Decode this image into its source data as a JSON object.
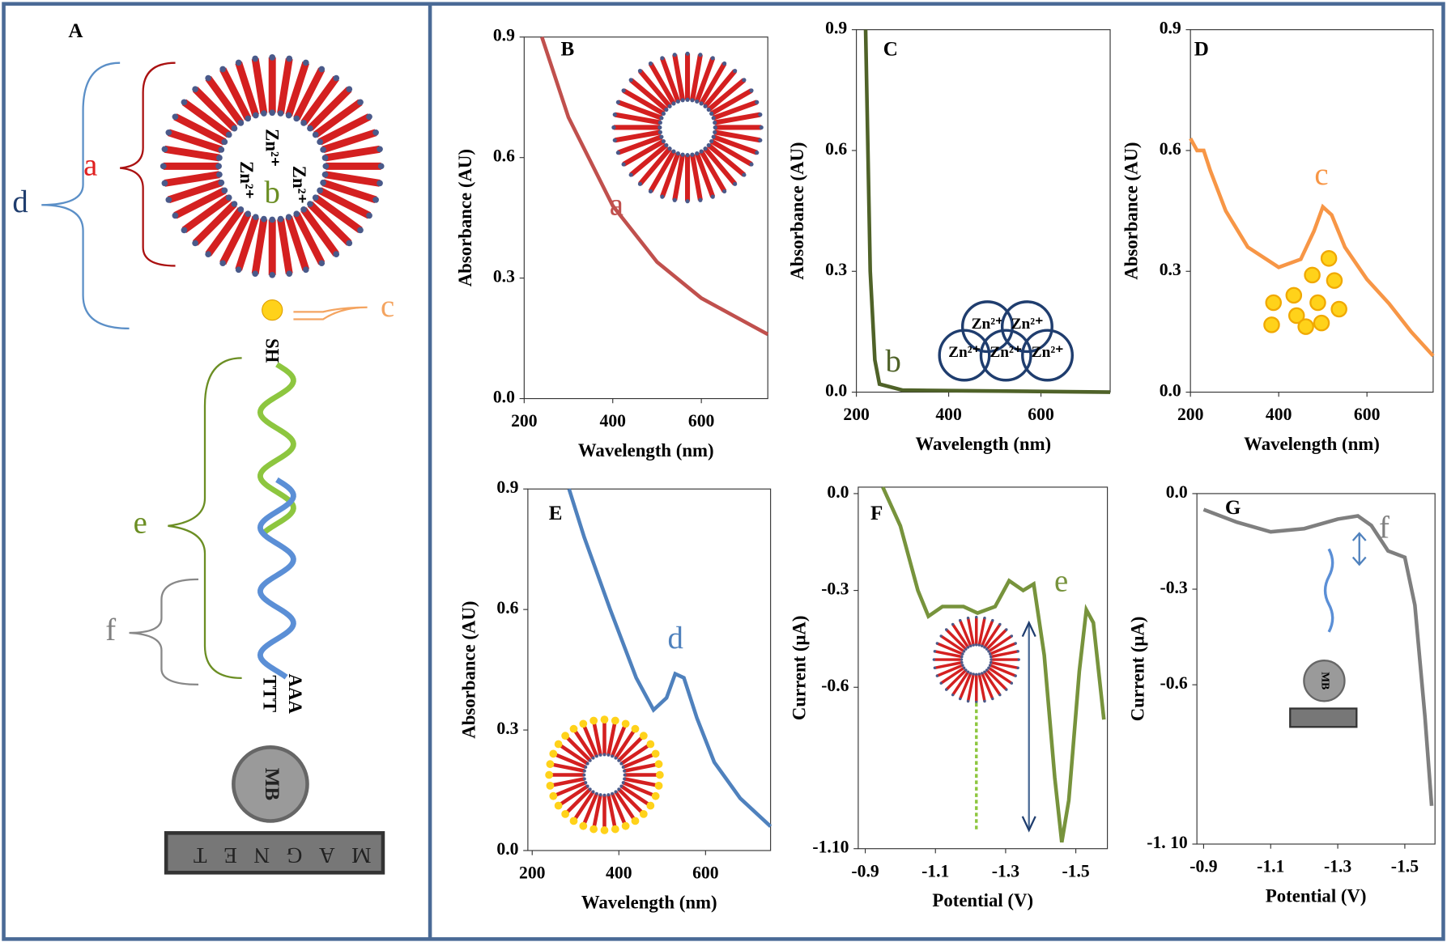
{
  "panel_a": {
    "label": "A",
    "labels": [
      "a",
      "b",
      "c",
      "d",
      "e",
      "f"
    ],
    "zn": [
      "Zn²⁺",
      "Zn²⁺",
      "Zn²⁺"
    ],
    "thiol": "SH",
    "strand_top": "AAA",
    "strand_bottom": "TTT",
    "bead": "MB",
    "magnet": "MAGNET"
  },
  "chart_data": [
    {
      "type": "line",
      "panel": "B",
      "xlabel": "Wavelength (nm)",
      "ylabel": "Absorbance (AU)",
      "x": [
        240,
        300,
        400,
        500,
        600,
        700,
        750
      ],
      "series": [
        {
          "name": "a",
          "color": "#c0504d",
          "values": [
            0.9,
            0.7,
            0.48,
            0.34,
            0.25,
            0.19,
            0.16
          ]
        }
      ],
      "xlim": [
        200,
        750
      ],
      "ylim": [
        0,
        0.9
      ],
      "xticks": [
        200,
        400,
        600
      ],
      "yticks": [
        {
          "value": 0,
          "label": "0.0"
        },
        0.3,
        0.6,
        0.9
      ]
    },
    {
      "type": "line",
      "panel": "C",
      "xlabel": "Wavelength (nm)",
      "ylabel": "Absorbance (AU)",
      "x": [
        220,
        225,
        230,
        240,
        250,
        300,
        750
      ],
      "series": [
        {
          "name": "b",
          "color": "#4f6228",
          "values": [
            0.9,
            0.6,
            0.3,
            0.08,
            0.02,
            0.005,
            0
          ]
        }
      ],
      "xlim": [
        200,
        750
      ],
      "ylim": [
        0,
        0.9
      ],
      "xticks": [
        200,
        400,
        600
      ],
      "yticks": [
        {
          "value": 0,
          "label": "0.0"
        },
        0.3,
        0.6,
        0.9
      ],
      "inset_labels": [
        "Zn²⁺",
        "Zn²⁺",
        "Zn²⁺",
        "Zn²⁺",
        "Zn²⁺"
      ]
    },
    {
      "type": "line",
      "panel": "D",
      "xlabel": "Wavelength (nm)",
      "ylabel": "Absorbance (AU)",
      "x": [
        200,
        215,
        230,
        245,
        280,
        330,
        400,
        450,
        480,
        500,
        520,
        550,
        600,
        650,
        700,
        750
      ],
      "series": [
        {
          "name": "c",
          "color": "#f79646",
          "values": [
            0.63,
            0.6,
            0.6,
            0.55,
            0.45,
            0.36,
            0.31,
            0.33,
            0.4,
            0.46,
            0.44,
            0.36,
            0.28,
            0.22,
            0.15,
            0.09
          ]
        }
      ],
      "xlim": [
        200,
        750
      ],
      "ylim": [
        0,
        0.9
      ],
      "xticks": [
        200,
        400,
        600
      ],
      "yticks": [
        {
          "value": 0,
          "label": "0.0"
        },
        0.3,
        0.6,
        0.9
      ]
    },
    {
      "type": "line",
      "panel": "E",
      "xlabel": "Wavelength (nm)",
      "ylabel": "Absorbance (AU)",
      "x": [
        285,
        320,
        380,
        440,
        480,
        510,
        530,
        550,
        580,
        620,
        680,
        750
      ],
      "series": [
        {
          "name": "d",
          "color": "#4f81bd",
          "values": [
            0.9,
            0.78,
            0.6,
            0.43,
            0.35,
            0.38,
            0.44,
            0.43,
            0.33,
            0.22,
            0.13,
            0.06
          ]
        }
      ],
      "xlim": [
        190,
        750
      ],
      "ylim": [
        0,
        0.9
      ],
      "xticks": [
        200,
        400,
        600
      ],
      "yticks": [
        {
          "value": 0,
          "label": "0.0"
        },
        0.3,
        0.6,
        0.9
      ]
    },
    {
      "type": "line",
      "panel": "F",
      "xlabel": "Potential (V)",
      "ylabel": "Current (μA)",
      "x": [
        -0.95,
        -1.0,
        -1.05,
        -1.08,
        -1.12,
        -1.18,
        -1.22,
        -1.27,
        -1.31,
        -1.35,
        -1.38,
        -1.41,
        -1.44,
        -1.46,
        -1.48,
        -1.51,
        -1.53,
        -1.55,
        -1.58
      ],
      "series": [
        {
          "name": "e",
          "color": "#77933c",
          "values": [
            0.02,
            -0.1,
            -0.3,
            -0.38,
            -0.35,
            -0.35,
            -0.37,
            -0.35,
            -0.27,
            -0.3,
            -0.28,
            -0.5,
            -0.88,
            -1.08,
            -0.95,
            -0.55,
            -0.36,
            -0.4,
            -0.7
          ]
        }
      ],
      "xlim": [
        -0.88,
        -1.59
      ],
      "ylim": [
        -1.1,
        0.02
      ],
      "xticks": [
        -0.9,
        -1.1,
        -1.3,
        -1.5
      ],
      "yticks": [
        {
          "value": 0,
          "label": "0.0"
        },
        -0.3,
        -0.6,
        {
          "value": -1.1,
          "label": "-1.10"
        }
      ]
    },
    {
      "type": "line",
      "panel": "G",
      "xlabel": "Potential (V)",
      "ylabel": "Current (μA)",
      "x": [
        -0.9,
        -1.0,
        -1.1,
        -1.2,
        -1.3,
        -1.36,
        -1.4,
        -1.45,
        -1.5,
        -1.53,
        -1.56,
        -1.58
      ],
      "series": [
        {
          "name": "f",
          "color": "#7f7f7f",
          "values": [
            -0.05,
            -0.09,
            -0.12,
            -0.11,
            -0.08,
            -0.07,
            -0.1,
            -0.18,
            -0.2,
            -0.35,
            -0.7,
            -0.98
          ]
        }
      ],
      "xlim": [
        -0.88,
        -1.59
      ],
      "ylim": [
        -1.1,
        0
      ],
      "xticks": [
        -0.9,
        -1.1,
        -1.3,
        -1.5
      ],
      "yticks": [
        {
          "value": 0,
          "label": "0.0"
        },
        -0.3,
        -0.6,
        {
          "value": -1.1,
          "label": "-1. 10"
        }
      ],
      "inset_labels": [
        "MB"
      ]
    }
  ]
}
